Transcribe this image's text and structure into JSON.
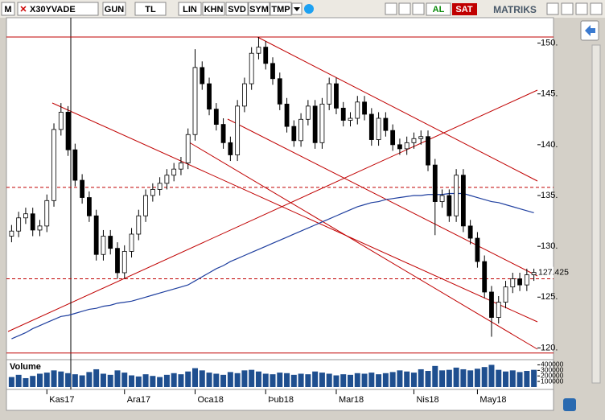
{
  "toolbar": {
    "logo": "M",
    "symbol": "X30YVADE",
    "buttons": [
      "GUN",
      "TL",
      "LIN",
      "KHN",
      "SVD",
      "SYM",
      "TMP"
    ],
    "buy": "AL",
    "sell": "SAT",
    "brand": "MATRIKS"
  },
  "chart_data": {
    "type": "candlestick",
    "categories": [
      null,
      null,
      null,
      null,
      null,
      "Kas17",
      null,
      null,
      null,
      null,
      null,
      null,
      null,
      null,
      null,
      null,
      "Ara17",
      null,
      null,
      null,
      null,
      null,
      null,
      null,
      null,
      null,
      "Oca18",
      null,
      null,
      null,
      null,
      null,
      null,
      null,
      null,
      null,
      "Þub18",
      null,
      null,
      null,
      null,
      null,
      null,
      null,
      null,
      null,
      "Mar18",
      null,
      null,
      null,
      null,
      null,
      null,
      null,
      null,
      null,
      null,
      "Nis18",
      null,
      null,
      null,
      null,
      null,
      null,
      null,
      null,
      "May18",
      null,
      null,
      null,
      null,
      null,
      null,
      null,
      null
    ],
    "open": [
      131.0,
      131.5,
      132.8,
      133.2,
      131.6,
      132.0,
      134.5,
      141.5,
      143.2,
      139.5,
      136.5,
      134.8,
      133.0,
      129.2,
      131.0,
      129.8,
      127.4,
      129.5,
      131.2,
      133.0,
      135.0,
      135.6,
      136.2,
      137.0,
      137.6,
      138.2,
      141.0,
      147.6,
      146.0,
      143.5,
      142.0,
      140.2,
      139.0,
      143.8,
      146.0,
      149.0,
      149.6,
      148.0,
      146.5,
      144.0,
      141.8,
      140.4,
      142.5,
      143.8,
      140.2,
      144.0,
      146.0,
      143.6,
      142.4,
      142.6,
      144.2,
      143.0,
      140.5,
      142.6,
      141.4,
      140.0,
      139.6,
      140.2,
      140.6,
      140.8,
      138.0,
      134.4,
      135.0,
      133.0,
      137.0,
      132.0,
      130.8,
      128.5,
      125.5,
      123.0,
      124.5,
      126.0,
      126.8,
      126.2,
      127.2
    ],
    "high": [
      132.1,
      133.4,
      133.8,
      133.8,
      132.6,
      135.1,
      142.1,
      144.1,
      143.8,
      140.1,
      137.1,
      135.4,
      133.6,
      131.6,
      131.6,
      130.4,
      130.1,
      131.8,
      133.6,
      135.6,
      136.2,
      136.8,
      137.6,
      138.2,
      138.8,
      141.6,
      149.4,
      148.2,
      146.6,
      144.1,
      142.6,
      140.8,
      144.4,
      146.6,
      149.6,
      150.6,
      150.2,
      148.6,
      147.1,
      144.6,
      142.4,
      143.1,
      144.4,
      144.4,
      144.6,
      146.6,
      146.6,
      144.2,
      143.2,
      144.8,
      144.8,
      143.6,
      143.2,
      143.2,
      142.0,
      140.6,
      140.8,
      141.2,
      141.4,
      141.4,
      138.6,
      135.6,
      135.6,
      137.6,
      137.6,
      132.6,
      131.4,
      129.1,
      126.1,
      125.1,
      126.6,
      127.4,
      127.4,
      127.8,
      127.8
    ],
    "low": [
      130.4,
      130.9,
      132.2,
      131.0,
      131.0,
      131.4,
      133.9,
      140.9,
      138.9,
      135.9,
      134.2,
      132.4,
      128.6,
      128.6,
      129.2,
      126.8,
      126.8,
      128.9,
      130.6,
      132.4,
      134.4,
      135.0,
      135.6,
      136.4,
      137.0,
      137.6,
      140.4,
      145.4,
      142.9,
      141.4,
      139.6,
      138.4,
      138.4,
      143.2,
      145.4,
      148.4,
      147.4,
      145.9,
      143.4,
      141.2,
      139.8,
      139.8,
      141.9,
      139.6,
      139.6,
      143.4,
      143.0,
      141.8,
      141.8,
      142.0,
      142.4,
      139.9,
      139.9,
      140.8,
      139.4,
      139.0,
      139.0,
      139.6,
      140.0,
      137.4,
      131.1,
      133.8,
      132.4,
      132.4,
      131.4,
      130.2,
      127.9,
      124.9,
      121.1,
      122.4,
      123.9,
      125.4,
      125.6,
      125.6,
      126.6
    ],
    "close": [
      131.5,
      132.8,
      133.2,
      131.6,
      132.0,
      134.5,
      141.5,
      143.2,
      139.5,
      136.5,
      134.8,
      133.0,
      129.2,
      131.0,
      129.8,
      127.4,
      129.5,
      131.2,
      133.0,
      135.0,
      135.6,
      136.2,
      137.0,
      137.6,
      138.2,
      141.0,
      147.6,
      146.0,
      143.5,
      142.0,
      140.2,
      139.0,
      143.8,
      146.0,
      149.0,
      149.6,
      148.0,
      146.5,
      144.0,
      141.8,
      140.4,
      142.5,
      143.8,
      140.2,
      144.0,
      146.0,
      143.6,
      142.4,
      142.6,
      144.2,
      143.0,
      140.5,
      142.6,
      141.4,
      140.0,
      139.6,
      140.2,
      140.6,
      140.8,
      138.0,
      134.4,
      135.0,
      133.0,
      137.0,
      132.0,
      130.8,
      128.5,
      125.5,
      123.0,
      124.5,
      126.0,
      126.8,
      126.2,
      127.2,
      127.425
    ],
    "up_color": "#ffffff",
    "down_color": "#000000",
    "ylim": [
      119.4,
      152.5
    ],
    "yticks": [
      {
        "value": 150,
        "label": "150."
      },
      {
        "value": 145,
        "label": "145."
      },
      {
        "value": 140,
        "label": "140."
      },
      {
        "value": 135,
        "label": "135."
      },
      {
        "value": 130,
        "label": "130."
      },
      {
        "value": 125,
        "label": "125."
      },
      {
        "value": 120,
        "label": "120."
      }
    ],
    "levels": [
      {
        "value": 150.6,
        "color": "#c00000",
        "style": "solid"
      },
      {
        "value": 135.8,
        "color": "#c00000",
        "style": "dashed"
      },
      {
        "value": 126.8,
        "color": "#c00000",
        "style": "dashed"
      },
      {
        "value": 119.5,
        "color": "#c00000",
        "style": "solid"
      }
    ],
    "moving_average": {
      "color": "#1f3f9f",
      "values": [
        120.9,
        121.2,
        121.5,
        121.9,
        122.2,
        122.5,
        122.8,
        123.1,
        123.2,
        123.4,
        123.6,
        123.8,
        123.9,
        124.1,
        124.2,
        124.4,
        124.5,
        124.6,
        124.8,
        125.0,
        125.2,
        125.4,
        125.6,
        125.8,
        126.0,
        126.2,
        126.6,
        127.0,
        127.4,
        127.8,
        128.1,
        128.5,
        128.8,
        129.1,
        129.4,
        129.7,
        130.0,
        130.3,
        130.6,
        130.9,
        131.2,
        131.5,
        131.8,
        132.1,
        132.4,
        132.7,
        133.0,
        133.3,
        133.6,
        133.9,
        134.1,
        134.3,
        134.4,
        134.6,
        134.7,
        134.8,
        134.9,
        135.0,
        135.0,
        135.1,
        135.1,
        135.1,
        135.2,
        135.2,
        135.2,
        135.0,
        134.8,
        134.6,
        134.4,
        134.3,
        134.1,
        133.9,
        133.7,
        133.5,
        133.3
      ]
    },
    "volume": {
      "title": "Volume",
      "color": "#1f4f8f",
      "ylim": [
        0,
        450000
      ],
      "yticks": [
        400000,
        300000,
        200000,
        100000
      ],
      "values": [
        180000,
        220000,
        160000,
        200000,
        240000,
        260000,
        300000,
        280000,
        250000,
        230000,
        210000,
        270000,
        320000,
        240000,
        220000,
        300000,
        260000,
        210000,
        190000,
        230000,
        200000,
        180000,
        220000,
        250000,
        230000,
        280000,
        340000,
        300000,
        260000,
        240000,
        220000,
        270000,
        250000,
        300000,
        310000,
        280000,
        240000,
        230000,
        260000,
        250000,
        220000,
        240000,
        230000,
        280000,
        260000,
        240000,
        210000,
        230000,
        220000,
        250000,
        240000,
        260000,
        230000,
        250000,
        270000,
        300000,
        280000,
        260000,
        320000,
        290000,
        380000,
        300000,
        310000,
        350000,
        320000,
        300000,
        330000,
        360000,
        400000,
        310000,
        280000,
        300000,
        270000,
        290000,
        310000
      ]
    }
  }
}
